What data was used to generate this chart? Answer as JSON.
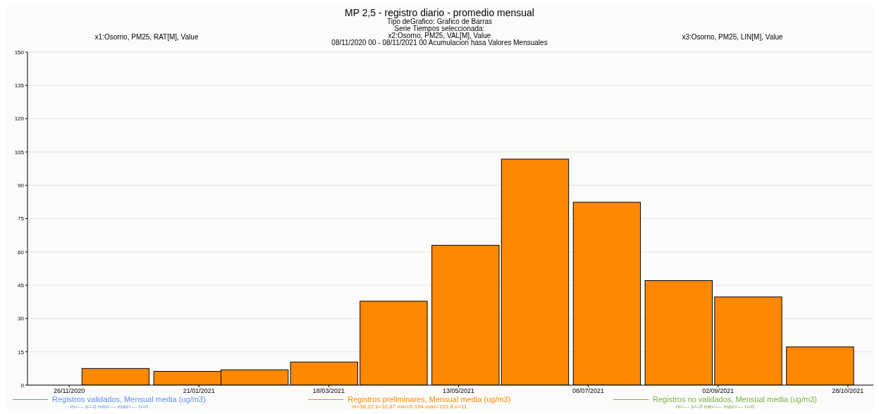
{
  "chart_data": {
    "type": "bar",
    "title": "MP 2,5 - registro diario - promedio mensual",
    "annotations": [
      "Tipo deGrafico: Grafico de Barras",
      "Serie Tiempos seleccionada:",
      "x1:Osorno, PM25, RAT[M], Value",
      "x2:Osorno, PM25, VAL[M], Value",
      "x3:Osorno, PM25, LIN[M], Value",
      "08/11/2020 00 - 08/11/2021 00  Acumulacion hasa Valores Mensuales",
      "m=--- s=-0 min=--- max=--- n=0",
      "m=38.22 s=32.87 min=6.194 max=101.8 n=11",
      "m=--- s=-0 min=--- max=--- n=0"
    ],
    "x": [
      "2020-12-16",
      "2021-01-16",
      "2021-02-14",
      "2021-03-16",
      "2021-04-15",
      "2021-05-16",
      "2021-06-15",
      "2021-07-16",
      "2021-08-16",
      "2021-09-15",
      "2021-10-16"
    ],
    "series": [
      {
        "name": "Registros validados, Mensual media (ug/m3)",
        "color": "#5b8ff9",
        "values": [
          null,
          null,
          null,
          null,
          null,
          null,
          null,
          null,
          null,
          null,
          null
        ]
      },
      {
        "name": "Registros preliminares, Mensual media (ug/m3)",
        "color": "#ff8800",
        "values": [
          7.5,
          6.2,
          6.9,
          10.4,
          37.8,
          63.0,
          101.8,
          82.4,
          47.1,
          39.7,
          17.2
        ]
      },
      {
        "name": "Registros no validados, Mensual media (ug/m3)",
        "color": "#77b043",
        "values": [
          null,
          null,
          null,
          null,
          null,
          null,
          null,
          null,
          null,
          null,
          null
        ]
      }
    ],
    "xlim": [
      "2020-11-08",
      "2021-11-08"
    ],
    "xticks": [
      {
        "value": "2020-11-26",
        "label": "26/11/2020"
      },
      {
        "value": "2021-01-21",
        "label": "21/01/2021"
      },
      {
        "value": "2021-03-18",
        "label": "18/03/2021"
      },
      {
        "value": "2021-05-13",
        "label": "13/05/2021"
      },
      {
        "value": "2021-07-08",
        "label": "08/07/2021"
      },
      {
        "value": "2021-09-02",
        "label": "02/09/2021"
      },
      {
        "value": "2021-10-28",
        "label": "28/10/2021"
      }
    ],
    "ylim": [
      0,
      150
    ],
    "yticks": [
      0,
      15,
      30,
      45,
      60,
      75,
      90,
      105,
      120,
      135,
      150
    ],
    "grid": "y",
    "legend": "bottom"
  }
}
